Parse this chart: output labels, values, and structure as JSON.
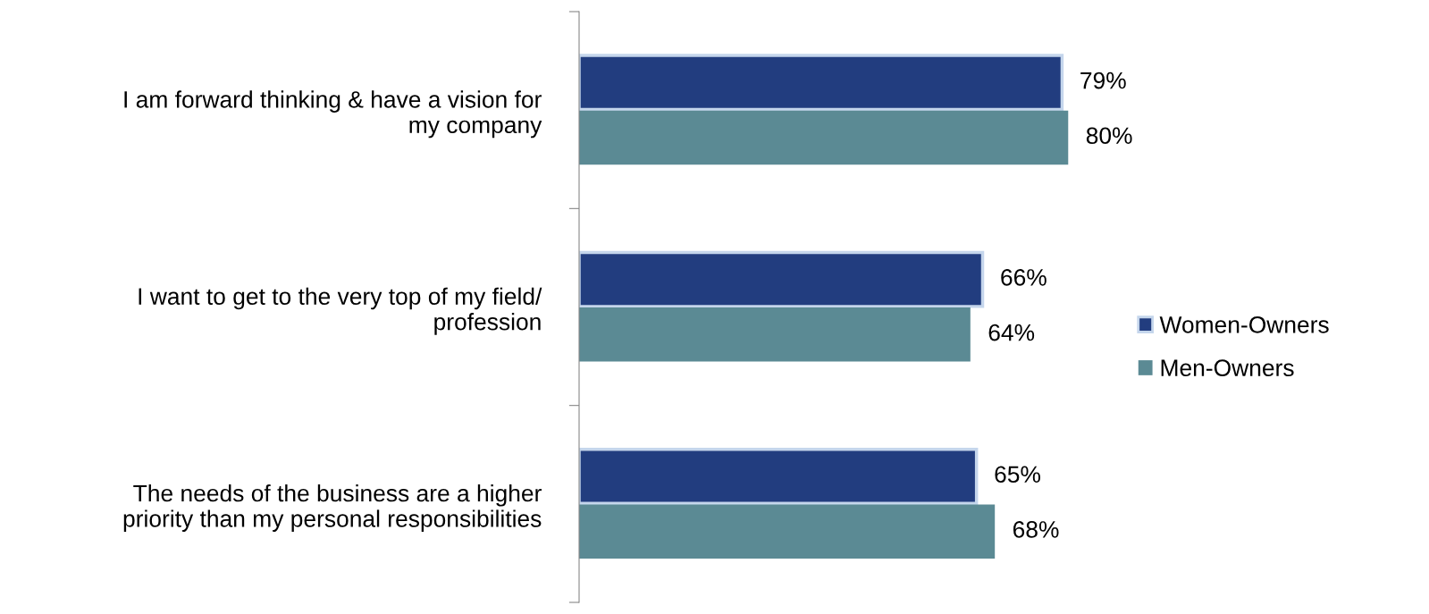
{
  "chart_data": {
    "type": "bar",
    "orientation": "horizontal",
    "categories": [
      "I am forward thinking & have a vision for\nmy company",
      "I want to get to the very top of my field/\nprofession",
      "The needs of the business are a higher\npriority than my personal responsibilities"
    ],
    "series": [
      {
        "name": "Women-Owners",
        "color": "#223d7f",
        "values": [
          79,
          66,
          65
        ],
        "value_labels": [
          "79%",
          "66%",
          "65%"
        ]
      },
      {
        "name": "Men-Owners",
        "color": "#5b8a94",
        "values": [
          80,
          64,
          68
        ],
        "value_labels": [
          "80%",
          "64%",
          "68%"
        ]
      }
    ],
    "tick_labels": "y",
    "legend": "right",
    "grid": false
  }
}
